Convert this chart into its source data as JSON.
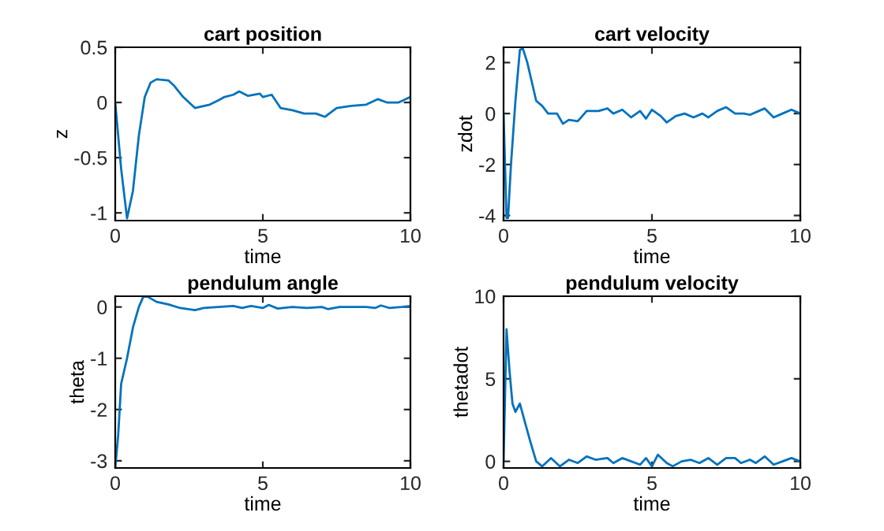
{
  "chart_data": [
    {
      "type": "line",
      "title": "cart position",
      "xlabel": "time",
      "ylabel": "z",
      "xlim": [
        0,
        10
      ],
      "xticks": [
        0,
        5,
        10
      ],
      "ylim": [
        -1.07,
        0.5
      ],
      "yticks": [
        -1,
        -0.5,
        0,
        0.5
      ],
      "grid": false,
      "legend": false,
      "series": [
        {
          "color": "#0072bd",
          "x": [
            0,
            0.2,
            0.4,
            0.6,
            0.8,
            1.0,
            1.2,
            1.4,
            1.8,
            2.0,
            2.3,
            2.7,
            3.2,
            3.5,
            3.7,
            4.0,
            4.2,
            4.5,
            4.9,
            5.0,
            5.3,
            5.6,
            6.0,
            6.4,
            6.8,
            7.1,
            7.5,
            8.0,
            8.5,
            8.9,
            9.2,
            9.6,
            10
          ],
          "values": [
            0,
            -0.6,
            -1.05,
            -0.8,
            -0.3,
            0.05,
            0.18,
            0.21,
            0.2,
            0.15,
            0.05,
            -0.05,
            -0.02,
            0.02,
            0.05,
            0.07,
            0.1,
            0.06,
            0.08,
            0.05,
            0.07,
            -0.05,
            -0.07,
            -0.1,
            -0.1,
            -0.13,
            -0.05,
            -0.03,
            -0.02,
            0.03,
            0.0,
            0.0,
            0.05
          ]
        }
      ]
    },
    {
      "type": "line",
      "title": "cart velocity",
      "xlabel": "time",
      "ylabel": "zdot",
      "xlim": [
        0,
        10
      ],
      "xticks": [
        0,
        5,
        10
      ],
      "ylim": [
        -4.2,
        2.6
      ],
      "yticks": [
        -4,
        -2,
        0,
        2
      ],
      "grid": false,
      "legend": false,
      "series": [
        {
          "color": "#0072bd",
          "x": [
            0,
            0.1,
            0.15,
            0.25,
            0.4,
            0.55,
            0.65,
            0.8,
            1.0,
            1.1,
            1.3,
            1.5,
            1.8,
            2.0,
            2.2,
            2.5,
            2.8,
            3.2,
            3.5,
            3.7,
            4.0,
            4.3,
            4.6,
            4.8,
            5.0,
            5.3,
            5.5,
            5.8,
            6.1,
            6.4,
            6.7,
            6.9,
            7.2,
            7.5,
            7.8,
            8.1,
            8.3,
            8.6,
            8.8,
            9.1,
            9.4,
            9.7,
            10
          ],
          "values": [
            0,
            -4.1,
            -4.1,
            -2,
            0.5,
            2.5,
            2.55,
            2,
            1,
            0.5,
            0.3,
            0,
            0,
            -0.4,
            -0.25,
            -0.3,
            0.1,
            0.1,
            0.2,
            0,
            0.15,
            -0.15,
            0.1,
            -0.2,
            0.15,
            -0.1,
            -0.35,
            -0.1,
            0,
            -0.15,
            0,
            -0.15,
            0.1,
            0.25,
            0,
            0,
            -0.05,
            0.1,
            0.2,
            -0.15,
            0,
            0.15,
            0
          ]
        }
      ]
    },
    {
      "type": "line",
      "title": "pendulum angle",
      "xlabel": "time",
      "ylabel": "theta",
      "xlim": [
        0,
        10
      ],
      "xticks": [
        0,
        5,
        10
      ],
      "ylim": [
        -3.14,
        0.21
      ],
      "yticks": [
        -3,
        -2,
        -1,
        0
      ],
      "grid": false,
      "legend": false,
      "series": [
        {
          "color": "#0072bd",
          "x": [
            0,
            0.1,
            0.2,
            0.4,
            0.6,
            0.8,
            0.95,
            1.1,
            1.4,
            1.8,
            2.2,
            2.7,
            3.0,
            3.5,
            4.0,
            4.3,
            4.6,
            5.0,
            5.2,
            5.5,
            6.0,
            6.5,
            7.0,
            7.2,
            7.6,
            8.0,
            8.5,
            8.8,
            9.0,
            9.3,
            9.7,
            10
          ],
          "values": [
            -3.14,
            -2.5,
            -1.5,
            -1,
            -0.4,
            0,
            0.2,
            0.2,
            0.1,
            0.05,
            -0.02,
            -0.06,
            -0.02,
            0,
            0.02,
            -0.02,
            0.02,
            -0.02,
            0.04,
            -0.03,
            0,
            -0.02,
            0,
            -0.04,
            0,
            0,
            0,
            -0.02,
            0.03,
            -0.02,
            0,
            0.02
          ]
        }
      ]
    },
    {
      "type": "line",
      "title": "pendulum velocity",
      "xlabel": "time",
      "ylabel": "thetadot",
      "xlim": [
        0,
        10
      ],
      "xticks": [
        0,
        5,
        10
      ],
      "ylim": [
        -0.4,
        10
      ],
      "yticks": [
        0,
        5,
        10
      ],
      "grid": false,
      "legend": false,
      "series": [
        {
          "color": "#0072bd",
          "x": [
            0,
            0.1,
            0.2,
            0.3,
            0.4,
            0.55,
            0.7,
            0.9,
            1.1,
            1.3,
            1.6,
            1.9,
            2.2,
            2.5,
            2.8,
            3.1,
            3.5,
            3.7,
            4.0,
            4.3,
            4.6,
            4.8,
            5.0,
            5.2,
            5.5,
            5.7,
            6.0,
            6.3,
            6.6,
            6.9,
            7.2,
            7.5,
            7.8,
            8.0,
            8.3,
            8.5,
            8.8,
            9.1,
            9.4,
            9.7,
            10
          ],
          "values": [
            0,
            8,
            5.5,
            3.5,
            3,
            3.5,
            2.5,
            1.2,
            0,
            -0.3,
            0.2,
            -0.3,
            0.1,
            -0.1,
            0.3,
            0.1,
            0.2,
            -0.1,
            0.2,
            0,
            -0.2,
            0.2,
            -0.3,
            0.4,
            -0.1,
            -0.3,
            0,
            0.1,
            -0.1,
            0.2,
            -0.2,
            0.2,
            0.2,
            -0.1,
            0.1,
            -0.1,
            0.3,
            -0.2,
            0,
            0.2,
            0
          ]
        }
      ]
    }
  ]
}
